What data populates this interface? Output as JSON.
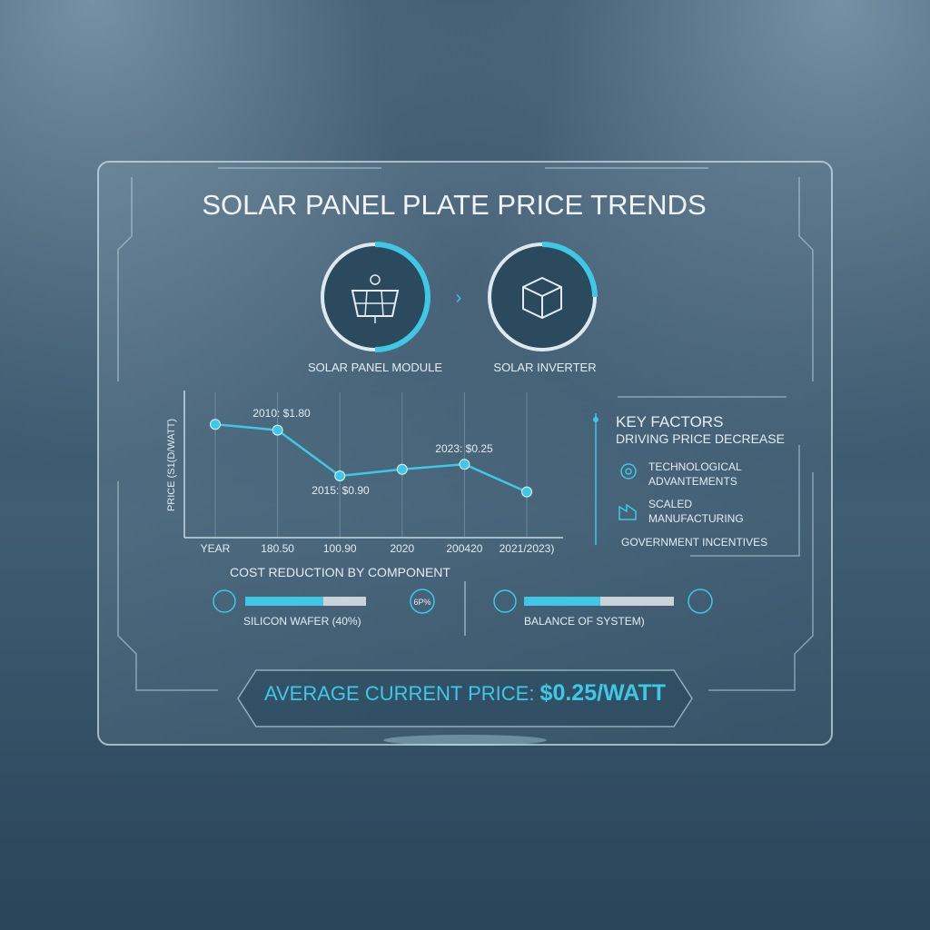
{
  "title": "SOLAR PANEL PLATE PRICE TRENDS",
  "components": [
    "SOLAR PANEL MODULE",
    "SOLAR INVERTER"
  ],
  "chart_data": {
    "type": "line",
    "y_label": "PRICE (S1(D/WATT)",
    "categories": [
      "YEAR",
      "180.50",
      "100.90",
      "2020",
      "200420",
      "2021/2023)"
    ],
    "series": [
      {
        "color": "#3ec8e6",
        "values": [
          1.56,
          1.48,
          0.85,
          0.94,
          1.01,
          0.63
        ]
      }
    ],
    "ylim": [
      0,
      2
    ],
    "annotations": [
      "2010: $1.80",
      "2015: $0.90",
      "2023: $0.25"
    ]
  },
  "key_factors": {
    "title": "KEY FACTORS",
    "subtitle": "DRIVING PRICE DECREASE",
    "items": [
      [
        "TECHNOLOGICAL",
        "ADVANTEMENTS"
      ],
      [
        "SCALED",
        "MANUFACTURING"
      ],
      [
        "GOVERNMENT INCENTIVES"
      ]
    ]
  },
  "cost_reduction": {
    "title": "COST REDUCTION BY COMPONENT",
    "badge": "6P%",
    "items": [
      "SILICON WAFER (40%)",
      "BALANCE OF SYSTEM)"
    ]
  },
  "footer": {
    "label": "AVERAGE CURRENT PRICE: ",
    "value": "$0.25/WATT"
  }
}
